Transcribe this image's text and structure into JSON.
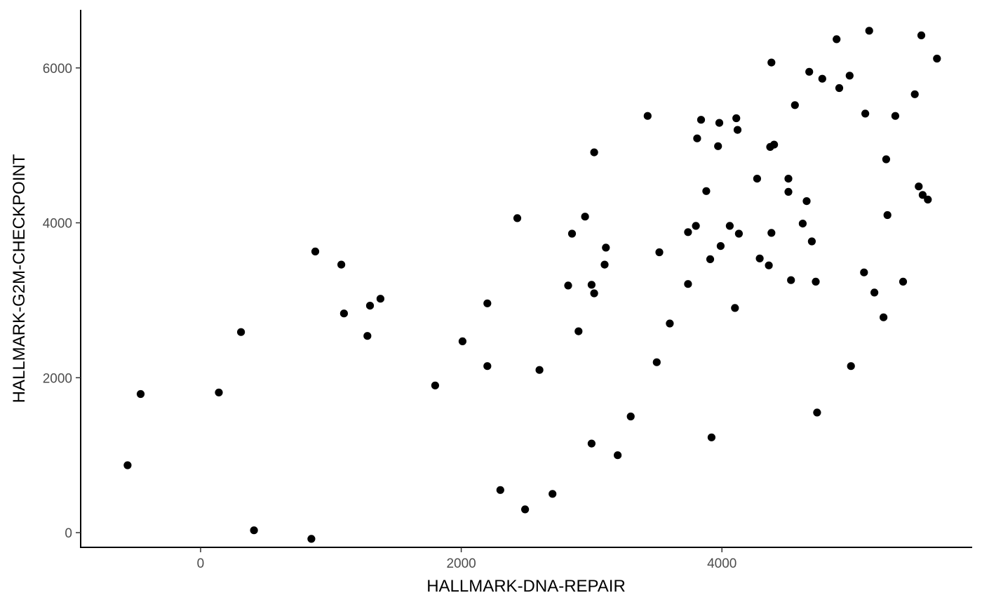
{
  "chart_data": {
    "type": "scatter",
    "title": "",
    "xlabel": "HALLMARK-DNA-REPAIR",
    "ylabel": "HALLMARK-G2M-CHECKPOINT",
    "xlim": [
      -920,
      5920
    ],
    "ylim": [
      -190,
      6750
    ],
    "x_ticks": [
      0,
      2000,
      4000
    ],
    "x_tick_labels": [
      "0",
      "2000",
      "4000"
    ],
    "y_ticks": [
      0,
      2000,
      4000,
      6000
    ],
    "y_tick_labels": [
      "0",
      "2000",
      "4000",
      "6000"
    ],
    "grid": false,
    "legend": "none",
    "point_color": "#000000",
    "series": [
      {
        "points": [
          [
            5130,
            6480
          ],
          [
            5530,
            6420
          ],
          [
            5650,
            6120
          ],
          [
            4880,
            6370
          ],
          [
            4380,
            6070
          ],
          [
            4670,
            5950
          ],
          [
            4770,
            5860
          ],
          [
            4980,
            5900
          ],
          [
            4900,
            5740
          ],
          [
            5480,
            5660
          ],
          [
            4560,
            5520
          ],
          [
            3430,
            5380
          ],
          [
            3840,
            5330
          ],
          [
            4110,
            5350
          ],
          [
            3980,
            5290
          ],
          [
            4120,
            5200
          ],
          [
            5100,
            5410
          ],
          [
            5330,
            5380
          ],
          [
            3810,
            5090
          ],
          [
            3970,
            4990
          ],
          [
            4370,
            4980
          ],
          [
            4400,
            5010
          ],
          [
            3020,
            4910
          ],
          [
            5260,
            4820
          ],
          [
            4270,
            4570
          ],
          [
            4510,
            4570
          ],
          [
            4510,
            4400
          ],
          [
            5510,
            4470
          ],
          [
            3880,
            4410
          ],
          [
            5540,
            4360
          ],
          [
            5580,
            4300
          ],
          [
            4650,
            4280
          ],
          [
            2430,
            4060
          ],
          [
            2950,
            4080
          ],
          [
            5270,
            4100
          ],
          [
            4620,
            3990
          ],
          [
            3800,
            3960
          ],
          [
            4060,
            3960
          ],
          [
            3740,
            3880
          ],
          [
            2850,
            3860
          ],
          [
            4380,
            3870
          ],
          [
            4130,
            3860
          ],
          [
            4690,
            3760
          ],
          [
            3110,
            3680
          ],
          [
            3520,
            3620
          ],
          [
            3990,
            3700
          ],
          [
            880,
            3630
          ],
          [
            3910,
            3530
          ],
          [
            4290,
            3540
          ],
          [
            4360,
            3450
          ],
          [
            3100,
            3460
          ],
          [
            5090,
            3360
          ],
          [
            5390,
            3240
          ],
          [
            2820,
            3190
          ],
          [
            3000,
            3200
          ],
          [
            3740,
            3210
          ],
          [
            4530,
            3260
          ],
          [
            4720,
            3240
          ],
          [
            5170,
            3100
          ],
          [
            3020,
            3090
          ],
          [
            1380,
            3020
          ],
          [
            1300,
            2930
          ],
          [
            1100,
            2830
          ],
          [
            5240,
            2780
          ],
          [
            2200,
            2960
          ],
          [
            310,
            2590
          ],
          [
            1280,
            2540
          ],
          [
            2200,
            2150
          ],
          [
            4990,
            2150
          ],
          [
            4730,
            1550
          ],
          [
            3920,
            1230
          ],
          [
            2490,
            300
          ],
          [
            850,
            -80
          ],
          [
            410,
            30
          ],
          [
            -560,
            870
          ],
          [
            -460,
            1790
          ],
          [
            140,
            1810
          ],
          [
            1080,
            3460
          ],
          [
            2010,
            2470
          ],
          [
            3500,
            2200
          ],
          [
            3300,
            1500
          ],
          [
            1800,
            1900
          ],
          [
            2600,
            2100
          ],
          [
            2900,
            2600
          ],
          [
            3600,
            2700
          ],
          [
            4100,
            2900
          ],
          [
            3000,
            1150
          ],
          [
            2700,
            500
          ],
          [
            3200,
            1000
          ],
          [
            2300,
            550
          ]
        ]
      }
    ]
  }
}
